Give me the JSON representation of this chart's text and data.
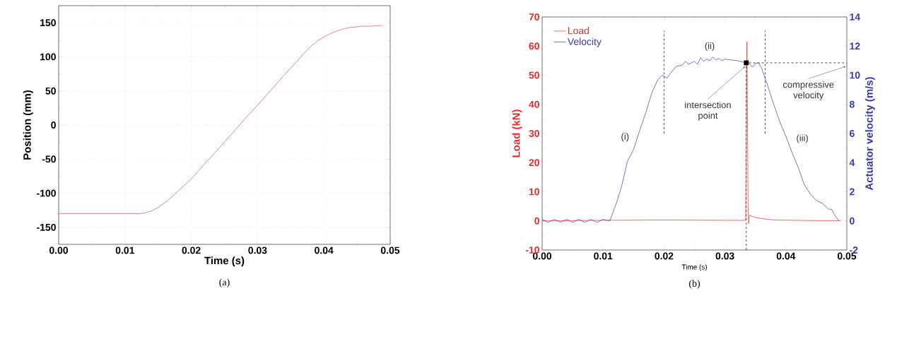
{
  "chart_data": [
    {
      "type": "line",
      "title": "(a)",
      "xlabel": "Time (s)",
      "ylabel": "Position (mm)",
      "xlim": [
        0,
        0.05
      ],
      "ylim": [
        -175,
        175
      ],
      "xticks": [
        {
          "value": 0,
          "label": "0.00"
        },
        {
          "value": 0.01,
          "label": "0.01"
        },
        {
          "value": 0.02,
          "label": "0.02"
        },
        {
          "value": 0.03,
          "label": "0.03"
        },
        {
          "value": 0.04,
          "label": "0.04"
        },
        {
          "value": 0.05,
          "label": "0.05"
        }
      ],
      "yticks": [
        -150,
        -100,
        -50,
        0,
        50,
        100,
        150
      ],
      "grid": true,
      "series": [
        {
          "color": "#c85a5a",
          "x": [
            0,
            0.006,
            0.012,
            0.013,
            0.014,
            0.015,
            0.016,
            0.017,
            0.018,
            0.019,
            0.02,
            0.022,
            0.024,
            0.026,
            0.028,
            0.03,
            0.032,
            0.034,
            0.036,
            0.037,
            0.038,
            0.039,
            0.04,
            0.041,
            0.042,
            0.043,
            0.044,
            0.045,
            0.046,
            0.047,
            0.0488
          ],
          "values": [
            -130,
            -130,
            -130,
            -129,
            -126,
            -121,
            -114,
            -106,
            -97,
            -88,
            -79,
            -57,
            -36,
            -14,
            8,
            29,
            51,
            73,
            94,
            105,
            115,
            123,
            129,
            134,
            138,
            141,
            143,
            144,
            145,
            145,
            146
          ]
        }
      ]
    },
    {
      "type": "line",
      "title": "(b)",
      "xlabel": "Time (s)",
      "ylabel": "Load (kN)",
      "y2label": "Actuator velocity (m/s)",
      "xlim": [
        0,
        0.05
      ],
      "ylim": [
        -10,
        70
      ],
      "y2lim": [
        -2,
        14
      ],
      "xticks": [
        {
          "value": 0,
          "label": "0.00"
        },
        {
          "value": 0.01,
          "label": "0.01"
        },
        {
          "value": 0.02,
          "label": "0.02"
        },
        {
          "value": 0.03,
          "label": "0.03"
        },
        {
          "value": 0.04,
          "label": "0.04"
        },
        {
          "value": 0.05,
          "label": "0.05"
        }
      ],
      "yticks": [
        -10,
        0,
        10,
        20,
        30,
        40,
        50,
        60,
        70
      ],
      "y2ticks": [
        -2,
        0,
        2,
        4,
        6,
        8,
        10,
        12,
        14
      ],
      "legend": "top left",
      "series": [
        {
          "name": "Load",
          "color": "#e32b2b",
          "x": [
            0,
            0.01,
            0.02,
            0.03,
            0.0334,
            0.0336,
            0.0338,
            0.0339,
            0.034,
            0.0345,
            0.035,
            0.036,
            0.038,
            0.045,
            0.049
          ],
          "values": [
            0,
            0.2,
            0.3,
            0.2,
            0.2,
            61.5,
            5,
            -1,
            2,
            1.5,
            1.2,
            0.8,
            0.3,
            0.1,
            0.1
          ]
        },
        {
          "name": "Velocity",
          "color": "#3a3aa8",
          "axis": "y2",
          "x": [
            0,
            0.001,
            0.002,
            0.003,
            0.004,
            0.005,
            0.006,
            0.007,
            0.008,
            0.009,
            0.01,
            0.0111,
            0.01216,
            0.013,
            0.014,
            0.015,
            0.016,
            0.017,
            0.018,
            0.019,
            0.0197,
            0.0205,
            0.021,
            0.022,
            0.023,
            0.0235,
            0.024,
            0.025,
            0.0255,
            0.026,
            0.0265,
            0.027,
            0.0275,
            0.028,
            0.0285,
            0.029,
            0.0295,
            0.03,
            0.031,
            0.032,
            0.033,
            0.0335,
            0.034,
            0.0345,
            0.035,
            0.0355,
            0.036,
            0.037,
            0.038,
            0.039,
            0.04,
            0.041,
            0.042,
            0.043,
            0.044,
            0.045,
            0.046,
            0.047,
            0.0475,
            0.048,
            0.0487
          ],
          "values": [
            0.1,
            -0.1,
            0.1,
            -0.1,
            0.1,
            -0.1,
            0.1,
            -0.1,
            0.1,
            -0.1,
            0.1,
            0,
            1.2,
            2.3,
            4.1,
            4.9,
            6.2,
            7.4,
            8.8,
            9.7,
            10,
            9.8,
            10.1,
            10.6,
            10.7,
            10.95,
            10.75,
            10.95,
            10.75,
            11.2,
            10.95,
            11.1,
            11,
            11.25,
            11.05,
            11.15,
            11,
            11.1,
            11.05,
            11,
            10.9,
            10.85,
            10.8,
            10.55,
            10.8,
            10.85,
            10.5,
            9.3,
            8,
            6.8,
            5.8,
            4.7,
            3.7,
            2.5,
            1.85,
            1.4,
            1.2,
            0.8,
            0.8,
            0.4,
            0
          ]
        },
        {
          "type": "scatter",
          "color": "#000000",
          "axis": "y2",
          "marker": "square",
          "x": [
            0.0335
          ],
          "values": [
            10.85
          ]
        }
      ],
      "ref_lines": [
        {
          "axis": "x",
          "value": 0.02,
          "line_style": "dashed",
          "color": "#222222"
        },
        {
          "axis": "x",
          "value": 0.0366,
          "line_style": "dashed",
          "color": "#222222"
        },
        {
          "axis": "y2",
          "value": 10.85,
          "line_style": "dashed",
          "color": "#222222"
        }
      ],
      "annotations": [
        "(i)",
        "(ii)",
        "(iii)",
        {
          "text": "intersection point",
          "x": 0.0335,
          "y": 54.2
        },
        {
          "text": "compressive velocity",
          "x": 0.05,
          "y": 54.2
        }
      ]
    }
  ]
}
